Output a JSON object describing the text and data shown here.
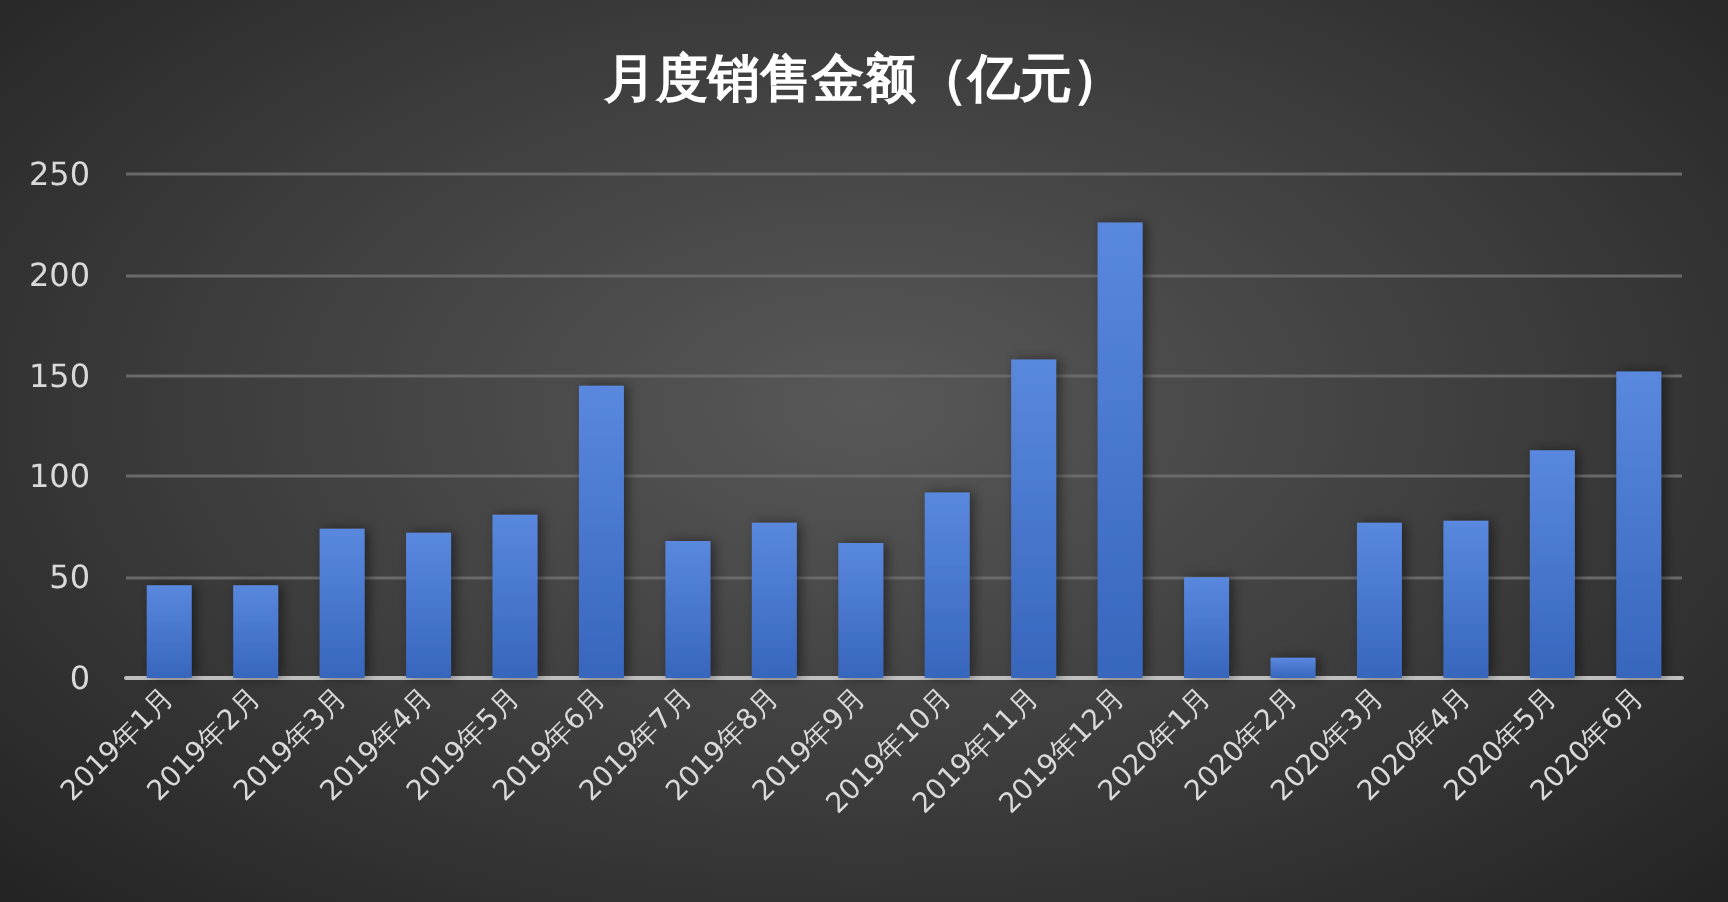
{
  "chart_data": {
    "type": "bar",
    "title": "月度销售金额（亿元）",
    "categories": [
      "2019年1月",
      "2019年2月",
      "2019年3月",
      "2019年4月",
      "2019年5月",
      "2019年6月",
      "2019年7月",
      "2019年8月",
      "2019年9月",
      "2019年10月",
      "2019年11月",
      "2019年12月",
      "2020年1月",
      "2020年2月",
      "2020年3月",
      "2020年4月",
      "2020年5月",
      "2020年6月"
    ],
    "values": [
      46,
      46,
      74,
      72,
      81,
      145,
      68,
      77,
      67,
      92,
      158,
      226,
      50,
      10,
      77,
      78,
      113,
      152
    ],
    "color": "#4a78cf",
    "ylim": [
      0,
      250
    ],
    "yticks": [
      0,
      50,
      100,
      150,
      200,
      250
    ],
    "grid": "y"
  }
}
